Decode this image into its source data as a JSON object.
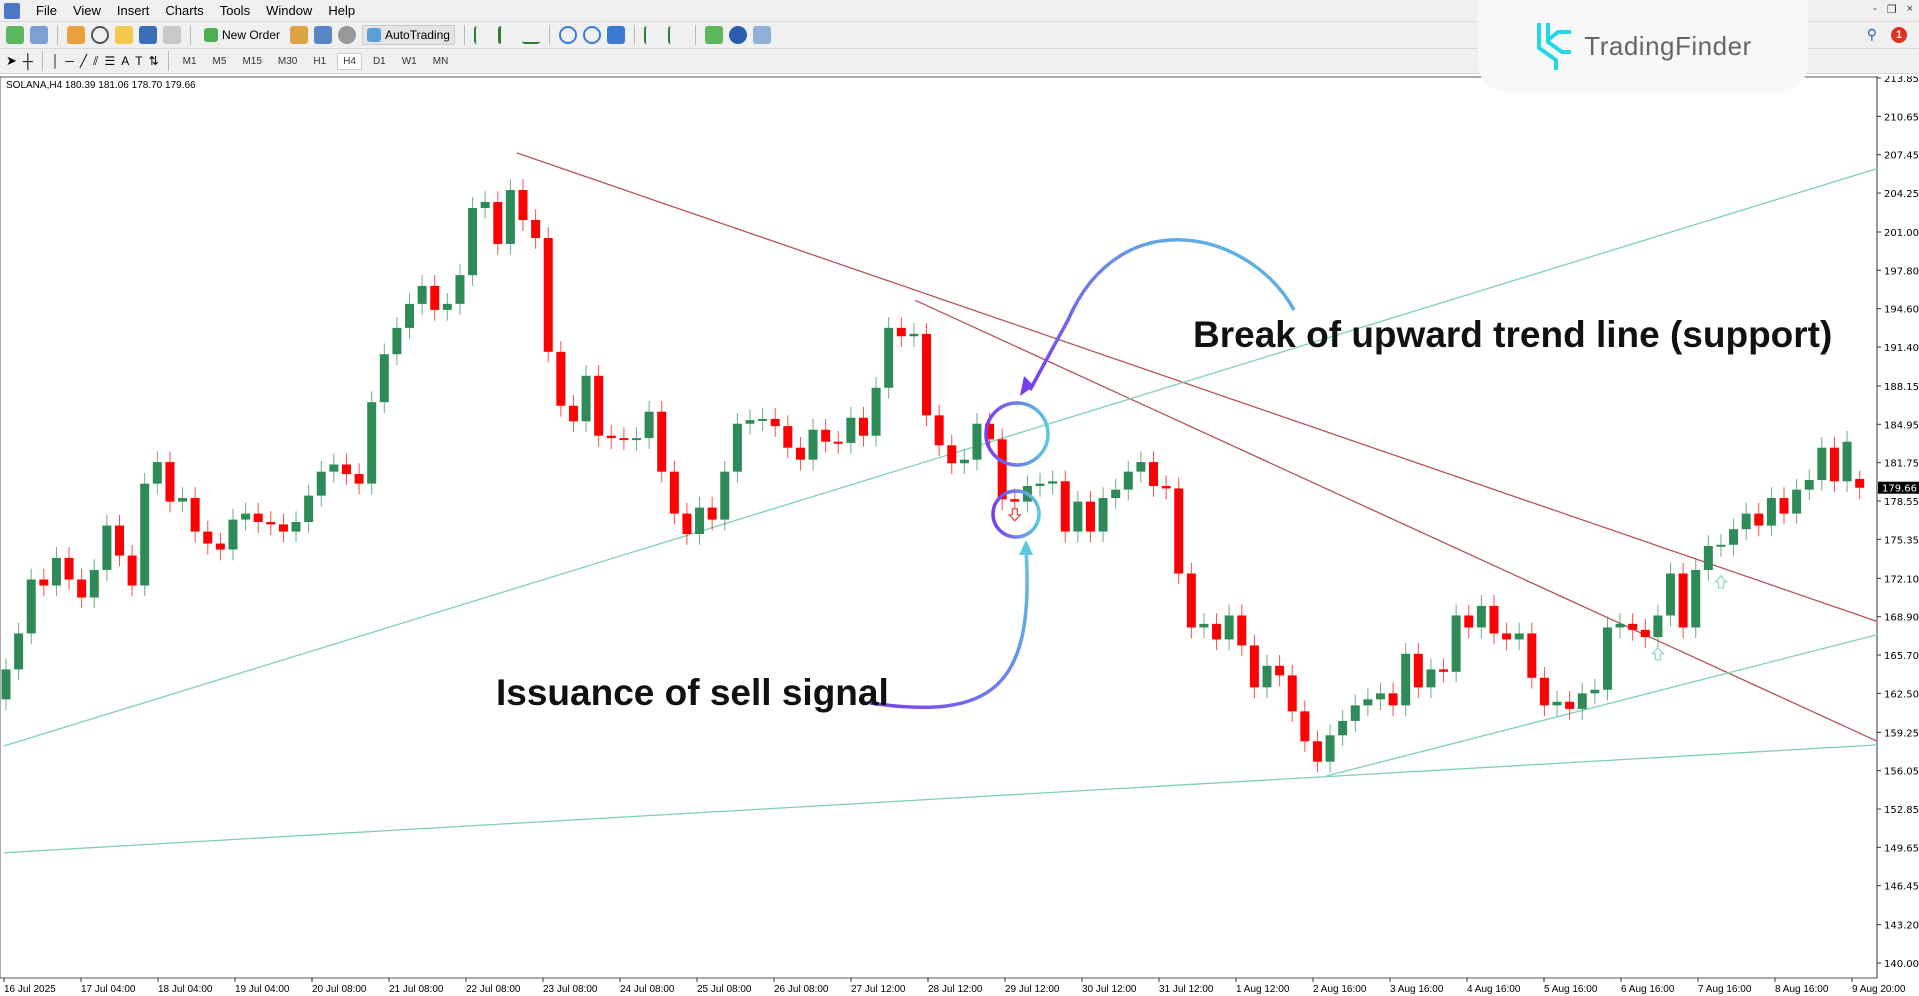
{
  "menu": [
    "File",
    "View",
    "Insert",
    "Charts",
    "Tools",
    "Window",
    "Help"
  ],
  "toolbar": {
    "new_order": "New Order",
    "autotrading": "AutoTrading"
  },
  "timeframes": [
    "M1",
    "M5",
    "M15",
    "M30",
    "H1",
    "H4",
    "D1",
    "W1",
    "MN"
  ],
  "active_timeframe": "H4",
  "window_controls": [
    "-",
    "❐",
    "×"
  ],
  "notification_count": "1",
  "logo": "TradingFinder",
  "chart": {
    "header": "SOLANA,H4  180.39 181.06 178.70 179.66",
    "symbol": "SOLANA",
    "timeframe": "H4",
    "last_bar": {
      "open": 180.39,
      "high": 181.06,
      "low": 178.7,
      "close": 179.66
    },
    "current_price": "179.66"
  },
  "chart_data": {
    "type": "candlestick",
    "ylim": [
      140.0,
      213.85
    ],
    "price_ticks": [
      "213.85",
      "210.65",
      "207.45",
      "204.25",
      "201.00",
      "197.80",
      "194.60",
      "191.40",
      "188.15",
      "184.95",
      "181.75",
      "178.55",
      "175.35",
      "172.10",
      "168.90",
      "165.70",
      "162.50",
      "159.25",
      "156.05",
      "152.85",
      "149.65",
      "146.45",
      "143.20",
      "140.00"
    ],
    "time_ticks": [
      "16 Jul 2025",
      "17 Jul 04:00",
      "18 Jul 04:00",
      "19 Jul 04:00",
      "20 Jul 08:00",
      "21 Jul 08:00",
      "22 Jul 08:00",
      "23 Jul 08:00",
      "24 Jul 08:00",
      "25 Jul 08:00",
      "26 Jul 08:00",
      "27 Jul 12:00",
      "28 Jul 12:00",
      "29 Jul 12:00",
      "30 Jul 12:00",
      "31 Jul 12:00",
      "1 Aug 12:00",
      "2 Aug 16:00",
      "3 Aug 16:00",
      "4 Aug 16:00",
      "5 Aug 16:00",
      "6 Aug 16:00",
      "7 Aug 16:00",
      "8 Aug 16:00",
      "9 Aug 20:00"
    ],
    "first_open": 162.0,
    "closes": [
      164.5,
      167.5,
      172.0,
      171.5,
      173.8,
      172.0,
      170.5,
      172.8,
      176.5,
      174.0,
      171.5,
      180.0,
      181.8,
      178.5,
      178.8,
      176.0,
      175.0,
      174.5,
      177.0,
      177.5,
      176.8,
      176.6,
      176.0,
      176.8,
      179.0,
      181.0,
      181.6,
      180.8,
      180.0,
      186.8,
      190.8,
      193.0,
      195.0,
      196.5,
      194.5,
      195.0,
      197.4,
      203.0,
      203.5,
      200.0,
      204.5,
      202.0,
      200.5,
      191.0,
      186.5,
      185.2,
      189.0,
      184.0,
      183.8,
      183.7,
      183.8,
      186.0,
      181.0,
      177.5,
      175.8,
      178.0,
      177.0,
      181.0,
      185.0,
      185.3,
      185.4,
      184.8,
      183.0,
      182.0,
      184.5,
      183.5,
      183.4,
      185.5,
      184.0,
      188.0,
      193.0,
      192.3,
      192.5,
      185.7,
      183.2,
      181.7,
      182.0,
      185.0,
      183.7,
      178.7,
      178.5,
      179.8,
      180.0,
      180.2,
      176.0,
      178.5,
      176.0,
      178.8,
      179.5,
      181.0,
      181.8,
      179.8,
      179.6,
      172.5,
      168.0,
      168.3,
      167.0,
      169.0,
      166.5,
      163.0,
      164.8,
      164.0,
      161.0,
      158.5,
      156.8,
      159.0,
      160.2,
      161.5,
      162.0,
      162.5,
      161.5,
      165.8,
      163.0,
      164.5,
      164.3,
      169.0,
      168.0,
      169.8,
      167.5,
      167.0,
      167.5,
      163.8,
      161.5,
      161.8,
      161.2,
      162.5,
      162.8,
      168.0,
      168.3,
      167.8,
      167.2,
      169.0,
      172.5,
      168.0,
      172.8,
      174.8,
      174.9,
      176.2,
      177.5,
      176.5,
      178.8,
      177.5,
      179.5,
      180.3,
      183.0,
      180.2,
      183.5,
      180.39
    ],
    "trend_lines": [
      {
        "kind": "resistance",
        "color": "#b5555a",
        "from": [
          40.5,
          207.6
        ],
        "to": [
          148.4,
          168.5
        ]
      },
      {
        "kind": "resistance",
        "color": "#b5555a",
        "from": [
          72.1,
          195.3
        ],
        "to": [
          148.4,
          158.5
        ]
      },
      {
        "kind": "support",
        "color": "#7fd0b8",
        "from": [
          -0.2,
          158.1
        ],
        "to": [
          148.4,
          206.3
        ]
      },
      {
        "kind": "support",
        "color": "#7fd0b8",
        "from": [
          -0.2,
          149.2
        ],
        "to": [
          148.4,
          158.2
        ]
      },
      {
        "kind": "support",
        "color": "#7fd0b8",
        "from": [
          104.7,
          155.6
        ],
        "to": [
          148.4,
          167.4
        ]
      }
    ],
    "signals": [
      {
        "type": "sell",
        "bar": 80,
        "price": 177.4,
        "color": "#e0403a"
      },
      {
        "type": "buy",
        "bar": 131,
        "price": 165.8,
        "color": "#8fd8c2"
      },
      {
        "type": "buy",
        "bar": 136,
        "price": 171.8,
        "color": "#8fd8c2"
      }
    ],
    "colors": {
      "bull": "#2e8b57",
      "bear": "#ff0000"
    }
  },
  "annotations": {
    "break": "Break of upward trend line (support)",
    "signal": "Issuance of sell signal"
  }
}
